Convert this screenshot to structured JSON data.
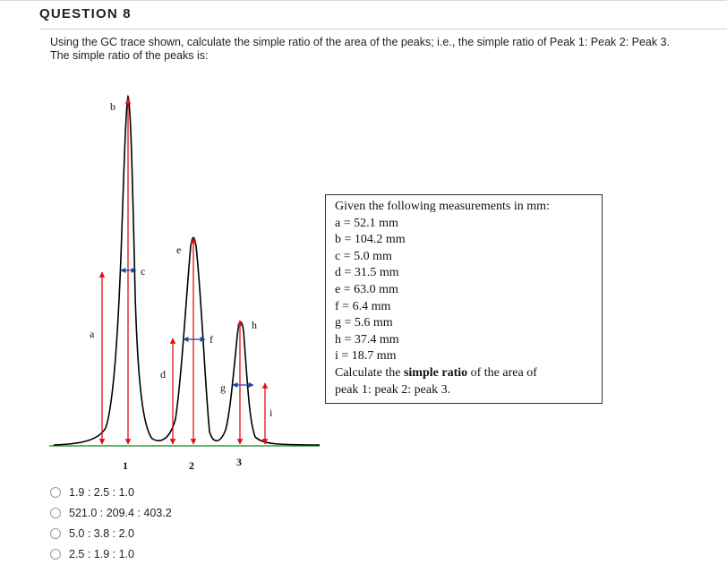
{
  "question": {
    "title": "QUESTION 8",
    "line1": "Using the GC trace shown, calculate the simple ratio of the area of the peaks; i.e., the simple ratio of Peak 1: Peak 2: Peak 3.",
    "line2": "The simple ratio of the peaks is:"
  },
  "figure": {
    "labels": {
      "a": "a",
      "b": "b",
      "c": "c",
      "d": "d",
      "e": "e",
      "f": "f",
      "g": "g",
      "h": "h",
      "i": "i"
    },
    "peak_numbers": [
      "1",
      "2",
      "3"
    ],
    "colors": {
      "trace": "#000000",
      "baseline": "#2e9e3e",
      "arrow": "#e01010",
      "width_arrow": "#1f3fa8"
    }
  },
  "measurements": {
    "header": "Given the following measurements in mm:",
    "items": [
      {
        "label": "a",
        "value": "52.1 mm"
      },
      {
        "label": "b",
        "value": "104.2 mm"
      },
      {
        "label": "c",
        "value": "5.0 mm"
      },
      {
        "label": "d",
        "value": "31.5 mm"
      },
      {
        "label": "e",
        "value": "63.0 mm"
      },
      {
        "label": "f",
        "value": "6.4 mm"
      },
      {
        "label": "g",
        "value": "5.6 mm"
      },
      {
        "label": "h",
        "value": "37.4 mm"
      },
      {
        "label": "i",
        "value": "18.7 mm"
      }
    ],
    "instruction_pre": "Calculate the ",
    "instruction_bold": "simple ratio",
    "instruction_post": " of the area of",
    "instruction_line2": "peak 1: peak 2: peak 3."
  },
  "options": [
    "1.9 : 2.5 : 1.0",
    "521.0 : 209.4 : 403.2",
    "5.0 : 3.8 : 2.0",
    "2.5 : 1.9 : 1.0"
  ]
}
